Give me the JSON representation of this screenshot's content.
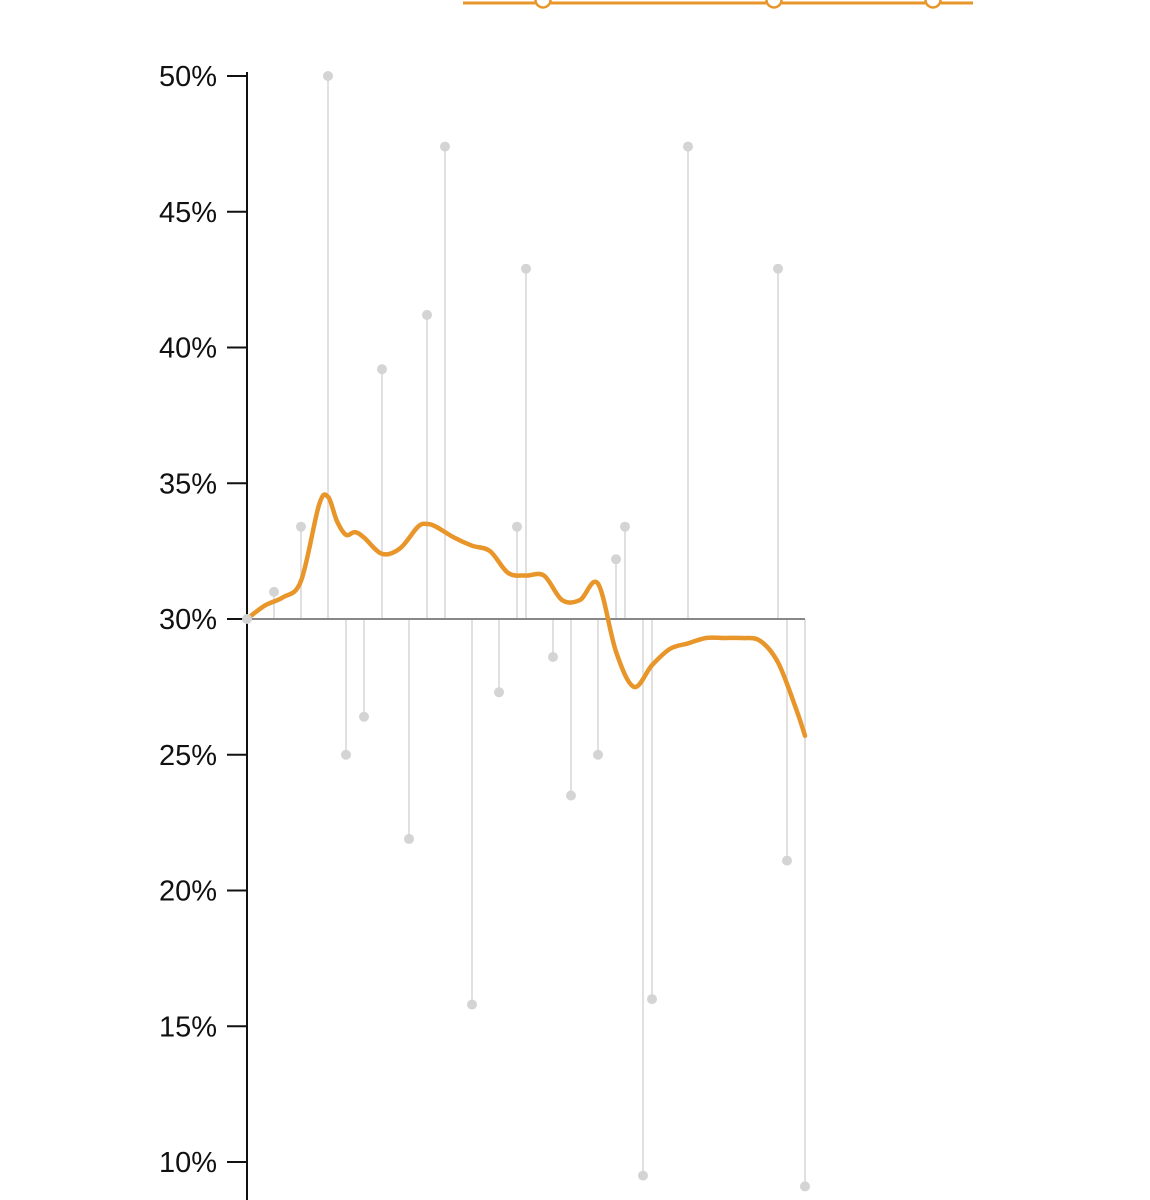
{
  "colors": {
    "line": "#E8952A",
    "stem": "#D9D9D9",
    "point": "#D4D4D4",
    "baseline": "#888888",
    "axis": "#111111"
  },
  "chart_data": {
    "type": "line",
    "title": "",
    "xlabel": "",
    "ylabel": "",
    "ylim": [
      10,
      50
    ],
    "yticks": [
      50,
      45,
      40,
      35,
      30,
      25,
      20,
      15,
      10
    ],
    "ytick_labels": [
      "50%",
      "45%",
      "40%",
      "35%",
      "30%",
      "25%",
      "20%",
      "15%",
      "10%"
    ],
    "baseline": 30,
    "grid": false,
    "legend": "none",
    "series": [
      {
        "kind": "points",
        "x": [
          1,
          2,
          3,
          4,
          5,
          6,
          7,
          8,
          9,
          10,
          11,
          12,
          13,
          14,
          15,
          16,
          17,
          18,
          19,
          20,
          21,
          22,
          23,
          24,
          25,
          26,
          27,
          28,
          29,
          30,
          31,
          32,
          33,
          34,
          35,
          36,
          37,
          38,
          39,
          40,
          41,
          42,
          43,
          44,
          45,
          46,
          47,
          48,
          49,
          50,
          51,
          52,
          53,
          54,
          55,
          56,
          57,
          58,
          59,
          60,
          61,
          62,
          63
        ],
        "values": [
          30,
          null,
          null,
          31,
          null,
          null,
          33.4,
          null,
          null,
          50,
          null,
          25,
          null,
          26.4,
          null,
          39.2,
          null,
          null,
          21.9,
          null,
          41.2,
          null,
          47.4,
          null,
          null,
          15.8,
          null,
          null,
          27.3,
          null,
          33.4,
          42.9,
          null,
          null,
          28.6,
          null,
          23.5,
          null,
          null,
          25,
          null,
          32.2,
          33.4,
          null,
          9.5,
          16,
          null,
          null,
          null,
          47.4,
          null,
          null,
          null,
          null,
          null,
          null,
          null,
          null,
          null,
          42.9,
          21.1,
          null,
          9.1
        ]
      },
      {
        "kind": "smoothed-line",
        "x": [
          1,
          3,
          5,
          7,
          9,
          10,
          11,
          12,
          13,
          14,
          16,
          18,
          20,
          21,
          22,
          24,
          26,
          28,
          30,
          32,
          34,
          36,
          38,
          40,
          42,
          44,
          46,
          48,
          50,
          52,
          54,
          56,
          58,
          60,
          62,
          63
        ],
        "values": [
          30,
          30.5,
          30.8,
          31.4,
          34.2,
          34.5,
          33.6,
          33.1,
          33.2,
          33,
          32.4,
          32.6,
          33.4,
          33.5,
          33.4,
          33,
          32.7,
          32.5,
          31.7,
          31.6,
          31.6,
          30.7,
          30.7,
          31.3,
          28.8,
          27.5,
          28.3,
          28.9,
          29.1,
          29.3,
          29.3,
          29.3,
          29.2,
          28.4,
          26.7,
          25.7
        ]
      }
    ]
  }
}
